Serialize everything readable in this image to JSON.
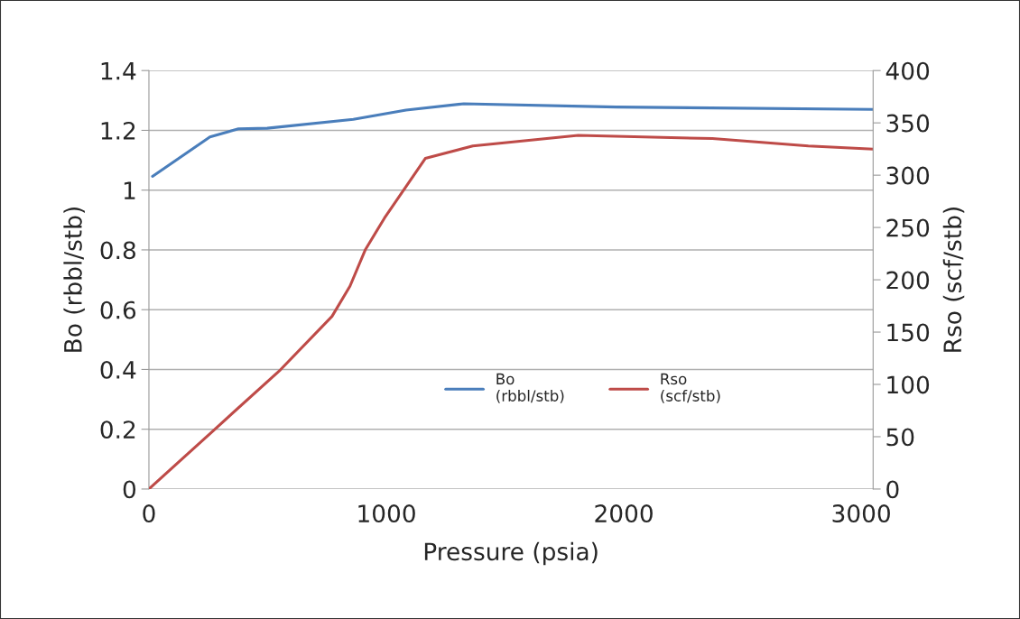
{
  "chart_data": {
    "type": "line",
    "xlabel": "Pressure (psia)",
    "ylabel": "Bo (rbbl/stb)",
    "y2label": "Rso (scf/stb)",
    "xlim": [
      0,
      3050
    ],
    "xticks": [
      0,
      1000,
      2000,
      3000
    ],
    "ylim": [
      0,
      1.4
    ],
    "yticks": [
      0,
      0.2,
      0.4,
      0.6,
      0.8,
      1,
      1.2,
      1.4
    ],
    "y2lim": [
      0,
      400
    ],
    "y2ticks": [
      0,
      50,
      100,
      150,
      200,
      250,
      300,
      350,
      400
    ],
    "grid": "y",
    "legend": "bottom",
    "line_style": "solid",
    "marker": "none",
    "series": [
      {
        "name": "Bo\n(rbbl/stb)",
        "color": "#4a7ebb",
        "x": [
          15,
          257,
          377,
          498,
          861,
          1083,
          1326,
          1969,
          3050
        ],
        "values": [
          1.046,
          1.178,
          1.205,
          1.207,
          1.237,
          1.268,
          1.289,
          1.278,
          1.27
        ]
      },
      {
        "name": "Rso\n(scf/stb)",
        "color": "#be4b48",
        "axis": "y2",
        "x": [
          0,
          272,
          554,
          771,
          847,
          912,
          992,
          1164,
          1364,
          1808,
          2373,
          2777,
          3050
        ],
        "values": [
          0,
          56,
          114,
          165,
          194,
          229,
          259,
          316,
          328,
          338,
          335,
          328,
          325
        ]
      }
    ]
  }
}
